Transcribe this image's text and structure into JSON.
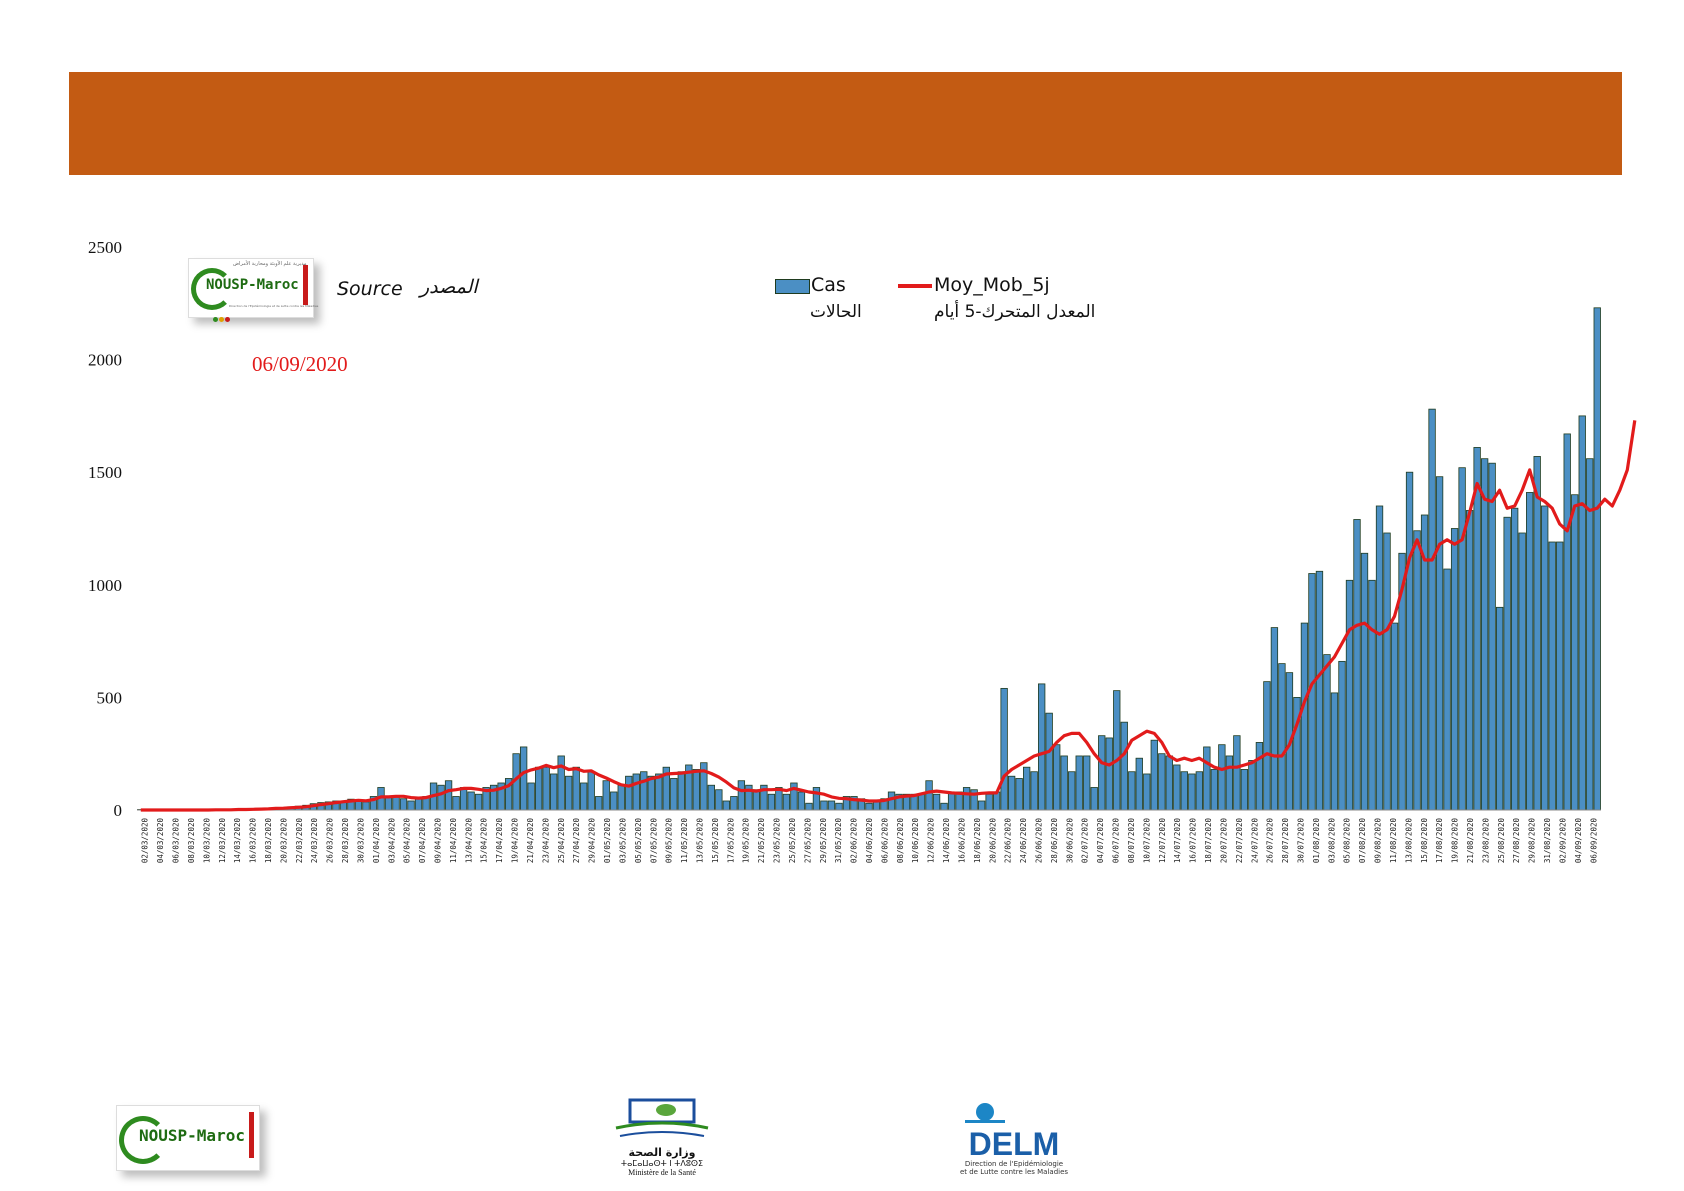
{
  "header": {
    "banner_color": "#c35b13"
  },
  "source": {
    "logo_text": "NOUSP-Maroc",
    "logo_arabic": "مديرية علم الأوبئة ومحاربة الأمراض",
    "logo_fr": "Direction de l'Epidémiologie et de Lutte contre les Maladies",
    "label_fr": "Source",
    "label_ar": "المصدر",
    "date": "06/09/2020"
  },
  "legend": {
    "bars_label": "Cas",
    "bars_label_ar": "الحالات",
    "line_label": "Moy_Mob_5j",
    "line_label_ar": "المعدل المتحرك-5 أيام"
  },
  "footer": {
    "nousp_text": "NOUSP-Maroc",
    "ministry_ar": "وزارة الصحة",
    "ministry_tif": "ⵜⴰⵎⴰⵡⴰⵙⵜ ⵏ ⵜⴷⵓⵙⵉ",
    "ministry_fr": "Ministère de la Santé",
    "delm_text": "DELM",
    "delm_sub1": "Direction de l'Epidémiologie",
    "delm_sub2": "et de Lutte contre les Maladies"
  },
  "chart_data": {
    "type": "bar",
    "y_ticks": [
      0,
      500,
      1000,
      1500,
      2000,
      2500
    ],
    "ylim": [
      0,
      2500
    ],
    "bar_color": "#4b8fc4",
    "bar_border": "#1f3b1f",
    "line_color": "#e21b1b",
    "grid": false,
    "x_tick_labels": [
      "02/03/2020",
      "04/03/2020",
      "06/03/2020",
      "08/03/2020",
      "10/03/2020",
      "12/03/2020",
      "14/03/2020",
      "16/03/2020",
      "18/03/2020",
      "20/03/2020",
      "22/03/2020",
      "24/03/2020",
      "26/03/2020",
      "28/03/2020",
      "30/03/2020",
      "01/04/2020",
      "03/04/2020",
      "05/04/2020",
      "07/04/2020",
      "09/04/2020",
      "11/04/2020",
      "13/04/2020",
      "15/04/2020",
      "17/04/2020",
      "19/04/2020",
      "21/04/2020",
      "23/04/2020",
      "25/04/2020",
      "27/04/2020",
      "29/04/2020",
      "01/05/2020",
      "03/05/2020",
      "05/05/2020",
      "07/05/2020",
      "09/05/2020",
      "11/05/2020",
      "13/05/2020",
      "15/05/2020",
      "17/05/2020",
      "19/05/2020",
      "21/05/2020",
      "23/05/2020",
      "25/05/2020",
      "27/05/2020",
      "29/05/2020",
      "31/05/2020",
      "02/06/2020",
      "04/06/2020",
      "06/06/2020",
      "08/06/2020",
      "10/06/2020",
      "12/06/2020",
      "14/06/2020",
      "16/06/2020",
      "18/06/2020",
      "20/06/2020",
      "22/06/2020",
      "24/06/2020",
      "26/06/2020",
      "28/06/2020",
      "30/06/2020",
      "02/07/2020",
      "04/07/2020",
      "06/07/2020",
      "08/07/2020",
      "10/07/2020",
      "12/07/2020",
      "14/07/2020",
      "16/07/2020",
      "18/07/2020",
      "20/07/2020",
      "22/07/2020",
      "24/07/2020",
      "26/07/2020",
      "28/07/2020",
      "30/07/2020",
      "01/08/2020",
      "03/08/2020",
      "05/08/2020",
      "07/08/2020",
      "09/08/2020",
      "11/08/2020",
      "13/08/2020",
      "15/08/2020",
      "17/08/2020",
      "19/08/2020",
      "21/08/2020",
      "23/08/2020",
      "25/08/2020",
      "27/08/2020",
      "29/08/2020",
      "31/08/2020",
      "02/09/2020",
      "04/09/2020",
      "06/09/2020"
    ],
    "series": [
      {
        "name": "Cas",
        "type": "bar",
        "values": [
          1,
          0,
          0,
          0,
          0,
          0,
          0,
          0,
          0,
          1,
          1,
          2,
          2,
          3,
          5,
          5,
          6,
          8,
          10,
          10,
          14,
          17,
          21,
          28,
          33,
          36,
          40,
          40,
          48,
          45,
          36,
          60,
          100,
          60,
          60,
          50,
          40,
          50,
          60,
          120,
          110,
          130,
          60,
          100,
          80,
          70,
          100,
          110,
          120,
          140,
          250,
          280,
          120,
          190,
          190,
          160,
          240,
          150,
          190,
          120,
          170,
          60,
          130,
          80,
          110,
          150,
          160,
          170,
          150,
          160,
          190,
          140,
          170,
          200,
          180,
          210,
          110,
          90,
          40,
          60,
          130,
          110,
          90,
          110,
          70,
          100,
          70,
          120,
          80,
          30,
          100,
          40,
          40,
          30,
          60,
          60,
          50,
          30,
          40,
          50,
          80,
          70,
          70,
          70,
          70,
          130,
          70,
          30,
          80,
          80,
          100,
          90,
          40,
          70,
          80,
          540,
          150,
          140,
          190,
          170,
          560,
          430,
          290,
          240,
          170,
          240,
          240,
          100,
          330,
          320,
          530,
          390,
          170,
          230,
          160,
          310,
          250,
          240,
          200,
          170,
          160,
          170,
          280,
          180,
          290,
          240,
          330,
          180,
          220,
          300,
          570,
          810,
          650,
          610,
          500,
          830,
          1050,
          1060,
          690,
          520,
          660,
          1020,
          1290,
          1140,
          1020,
          1350,
          1230,
          830,
          1140,
          1500,
          1240,
          1310,
          1780,
          1480,
          1070,
          1250,
          1520,
          1330,
          1610,
          1560,
          1540,
          900,
          1300,
          1340,
          1230,
          1410,
          1570,
          1350,
          1190,
          1190,
          1670,
          1400,
          1750,
          1560,
          2230
        ]
      },
      {
        "name": "Moy_Mob_5j",
        "type": "line",
        "values": [
          0,
          0,
          0,
          0,
          0,
          0,
          0,
          0,
          0,
          0,
          1,
          1,
          1,
          2,
          2,
          3,
          4,
          5,
          7,
          8,
          10,
          12,
          14,
          19,
          24,
          28,
          33,
          37,
          40,
          43,
          41,
          46,
          58,
          58,
          61,
          61,
          55,
          53,
          55,
          64,
          72,
          86,
          90,
          96,
          96,
          92,
          86,
          88,
          96,
          108,
          138,
          166,
          178,
          186,
          198,
          188,
          196,
          180,
          184,
          172,
          174,
          156,
          142,
          126,
          112,
          106,
          118,
          128,
          140,
          146,
          160,
          162,
          164,
          168,
          172,
          174,
          162,
          146,
          124,
          98,
          86,
          88,
          84,
          90,
          90,
          92,
          86,
          96,
          88,
          80,
          76,
          70,
          58,
          52,
          50,
          46,
          44,
          40,
          40,
          42,
          50,
          58,
          62,
          64,
          72,
          80,
          84,
          80,
          76,
          74,
          72,
          70,
          74,
          76,
          76,
          150,
          180,
          200,
          220,
          240,
          250,
          260,
          300,
          330,
          340,
          340,
          300,
          250,
          210,
          200,
          220,
          250,
          310,
          330,
          350,
          340,
          300,
          240,
          220,
          230,
          220,
          230,
          210,
          190,
          180,
          190,
          190,
          200,
          210,
          230,
          250,
          240,
          240,
          290,
          380,
          480,
          560,
          600,
          640,
          680,
          740,
          800,
          820,
          830,
          800,
          780,
          800,
          860,
          980,
          1120,
          1200,
          1110,
          1110,
          1180,
          1200,
          1180,
          1200,
          1320,
          1450,
          1380,
          1370,
          1420,
          1340,
          1350,
          1420,
          1510,
          1390,
          1370,
          1340,
          1270,
          1240,
          1350,
          1360,
          1330,
          1340,
          1380,
          1350,
          1420,
          1510,
          1730
        ]
      }
    ]
  }
}
